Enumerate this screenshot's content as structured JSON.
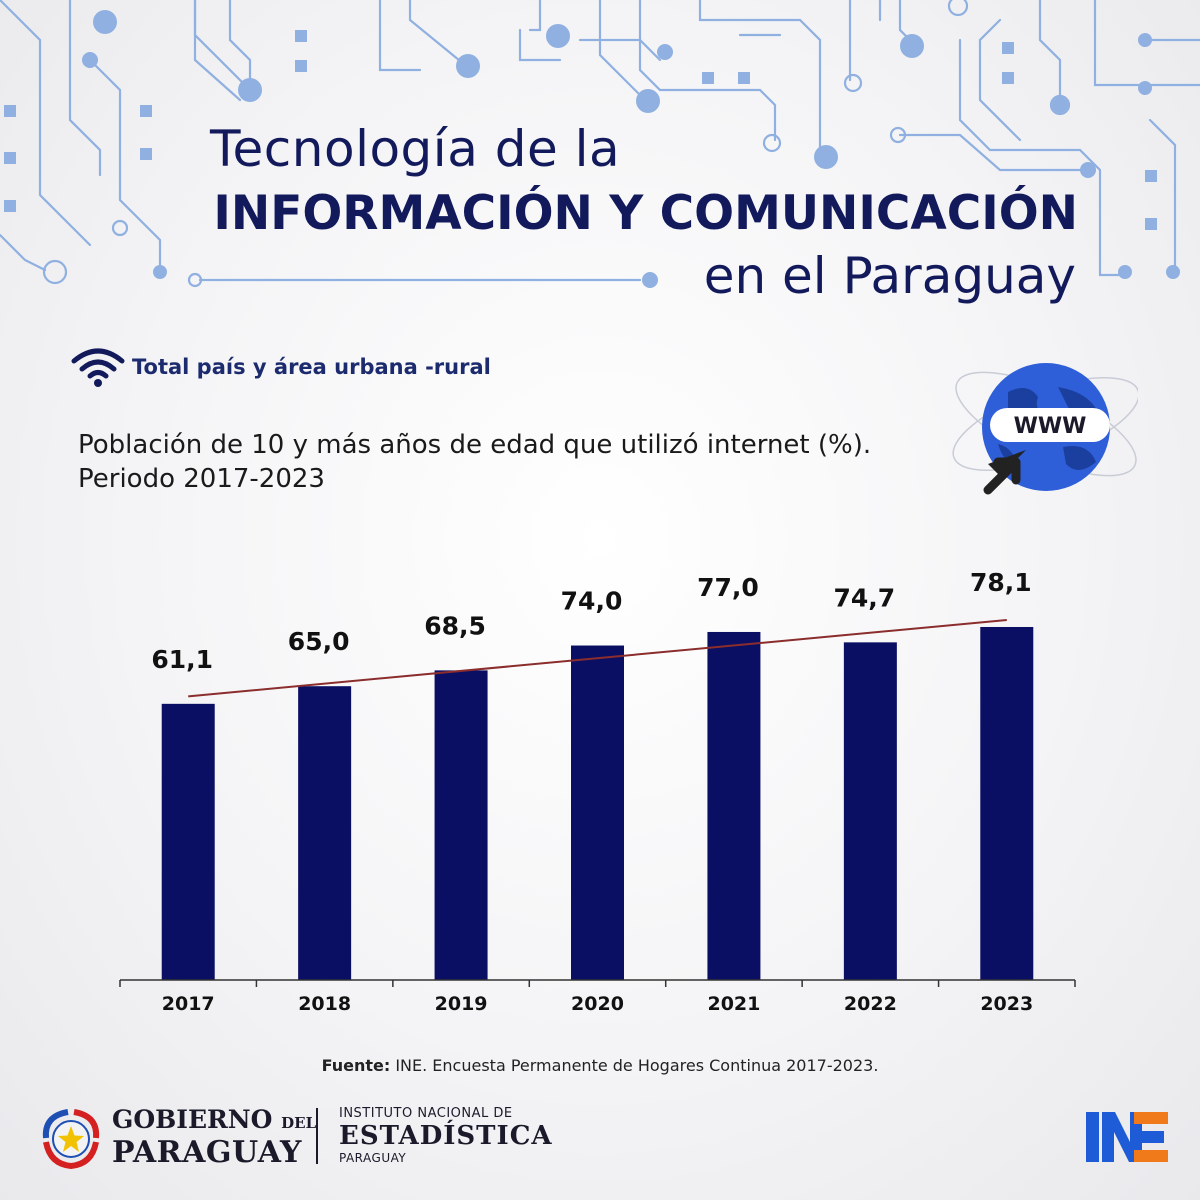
{
  "header": {
    "title_line1": "Tecnología de la",
    "title_line2": "INFORMACIÓN  Y COMUNICACIÓN",
    "title_line3": "en el Paraguay"
  },
  "section": {
    "label": "Total país y área urbana -rural",
    "icon": "wifi-icon"
  },
  "chart_title": {
    "line1": "Población de 10 y más años de edad que utilizó internet (%).",
    "line2": "Periodo 2017-2023"
  },
  "globe": {
    "label": "WWW",
    "icon": "globe-www-icon"
  },
  "chart_data": {
    "type": "bar",
    "categories": [
      "2017",
      "2018",
      "2019",
      "2020",
      "2021",
      "2022",
      "2023"
    ],
    "values": [
      61.1,
      65.0,
      68.5,
      74.0,
      77.0,
      74.7,
      78.1
    ],
    "data_labels": [
      "61,1",
      "65,0",
      "68,5",
      "74,0",
      "77,0",
      "74,7",
      "78,1"
    ],
    "trendline": true,
    "bar_color": "#0b0f63",
    "trend_color": "#8b2d2d",
    "ylim": [
      0,
      100
    ],
    "grid": false
  },
  "source": {
    "label": "Fuente:",
    "text": " INE. Encuesta Permanente de Hogares Continua 2017-2023."
  },
  "footer": {
    "gov_line1": "GOBIERNO",
    "gov_line1_small": "DEL",
    "gov_line2": "PARAGUAY",
    "ine_line1": "INSTITUTO NACIONAL DE",
    "ine_line2": "ESTADÍSTICA",
    "ine_line3": "PARAGUAY",
    "ine_logo_text": "INE"
  },
  "colors": {
    "navy": "#121a5c",
    "circuit": "#7fa6dd",
    "ine_blue": "#1e5bd6",
    "ine_orange": "#f07a1a"
  }
}
